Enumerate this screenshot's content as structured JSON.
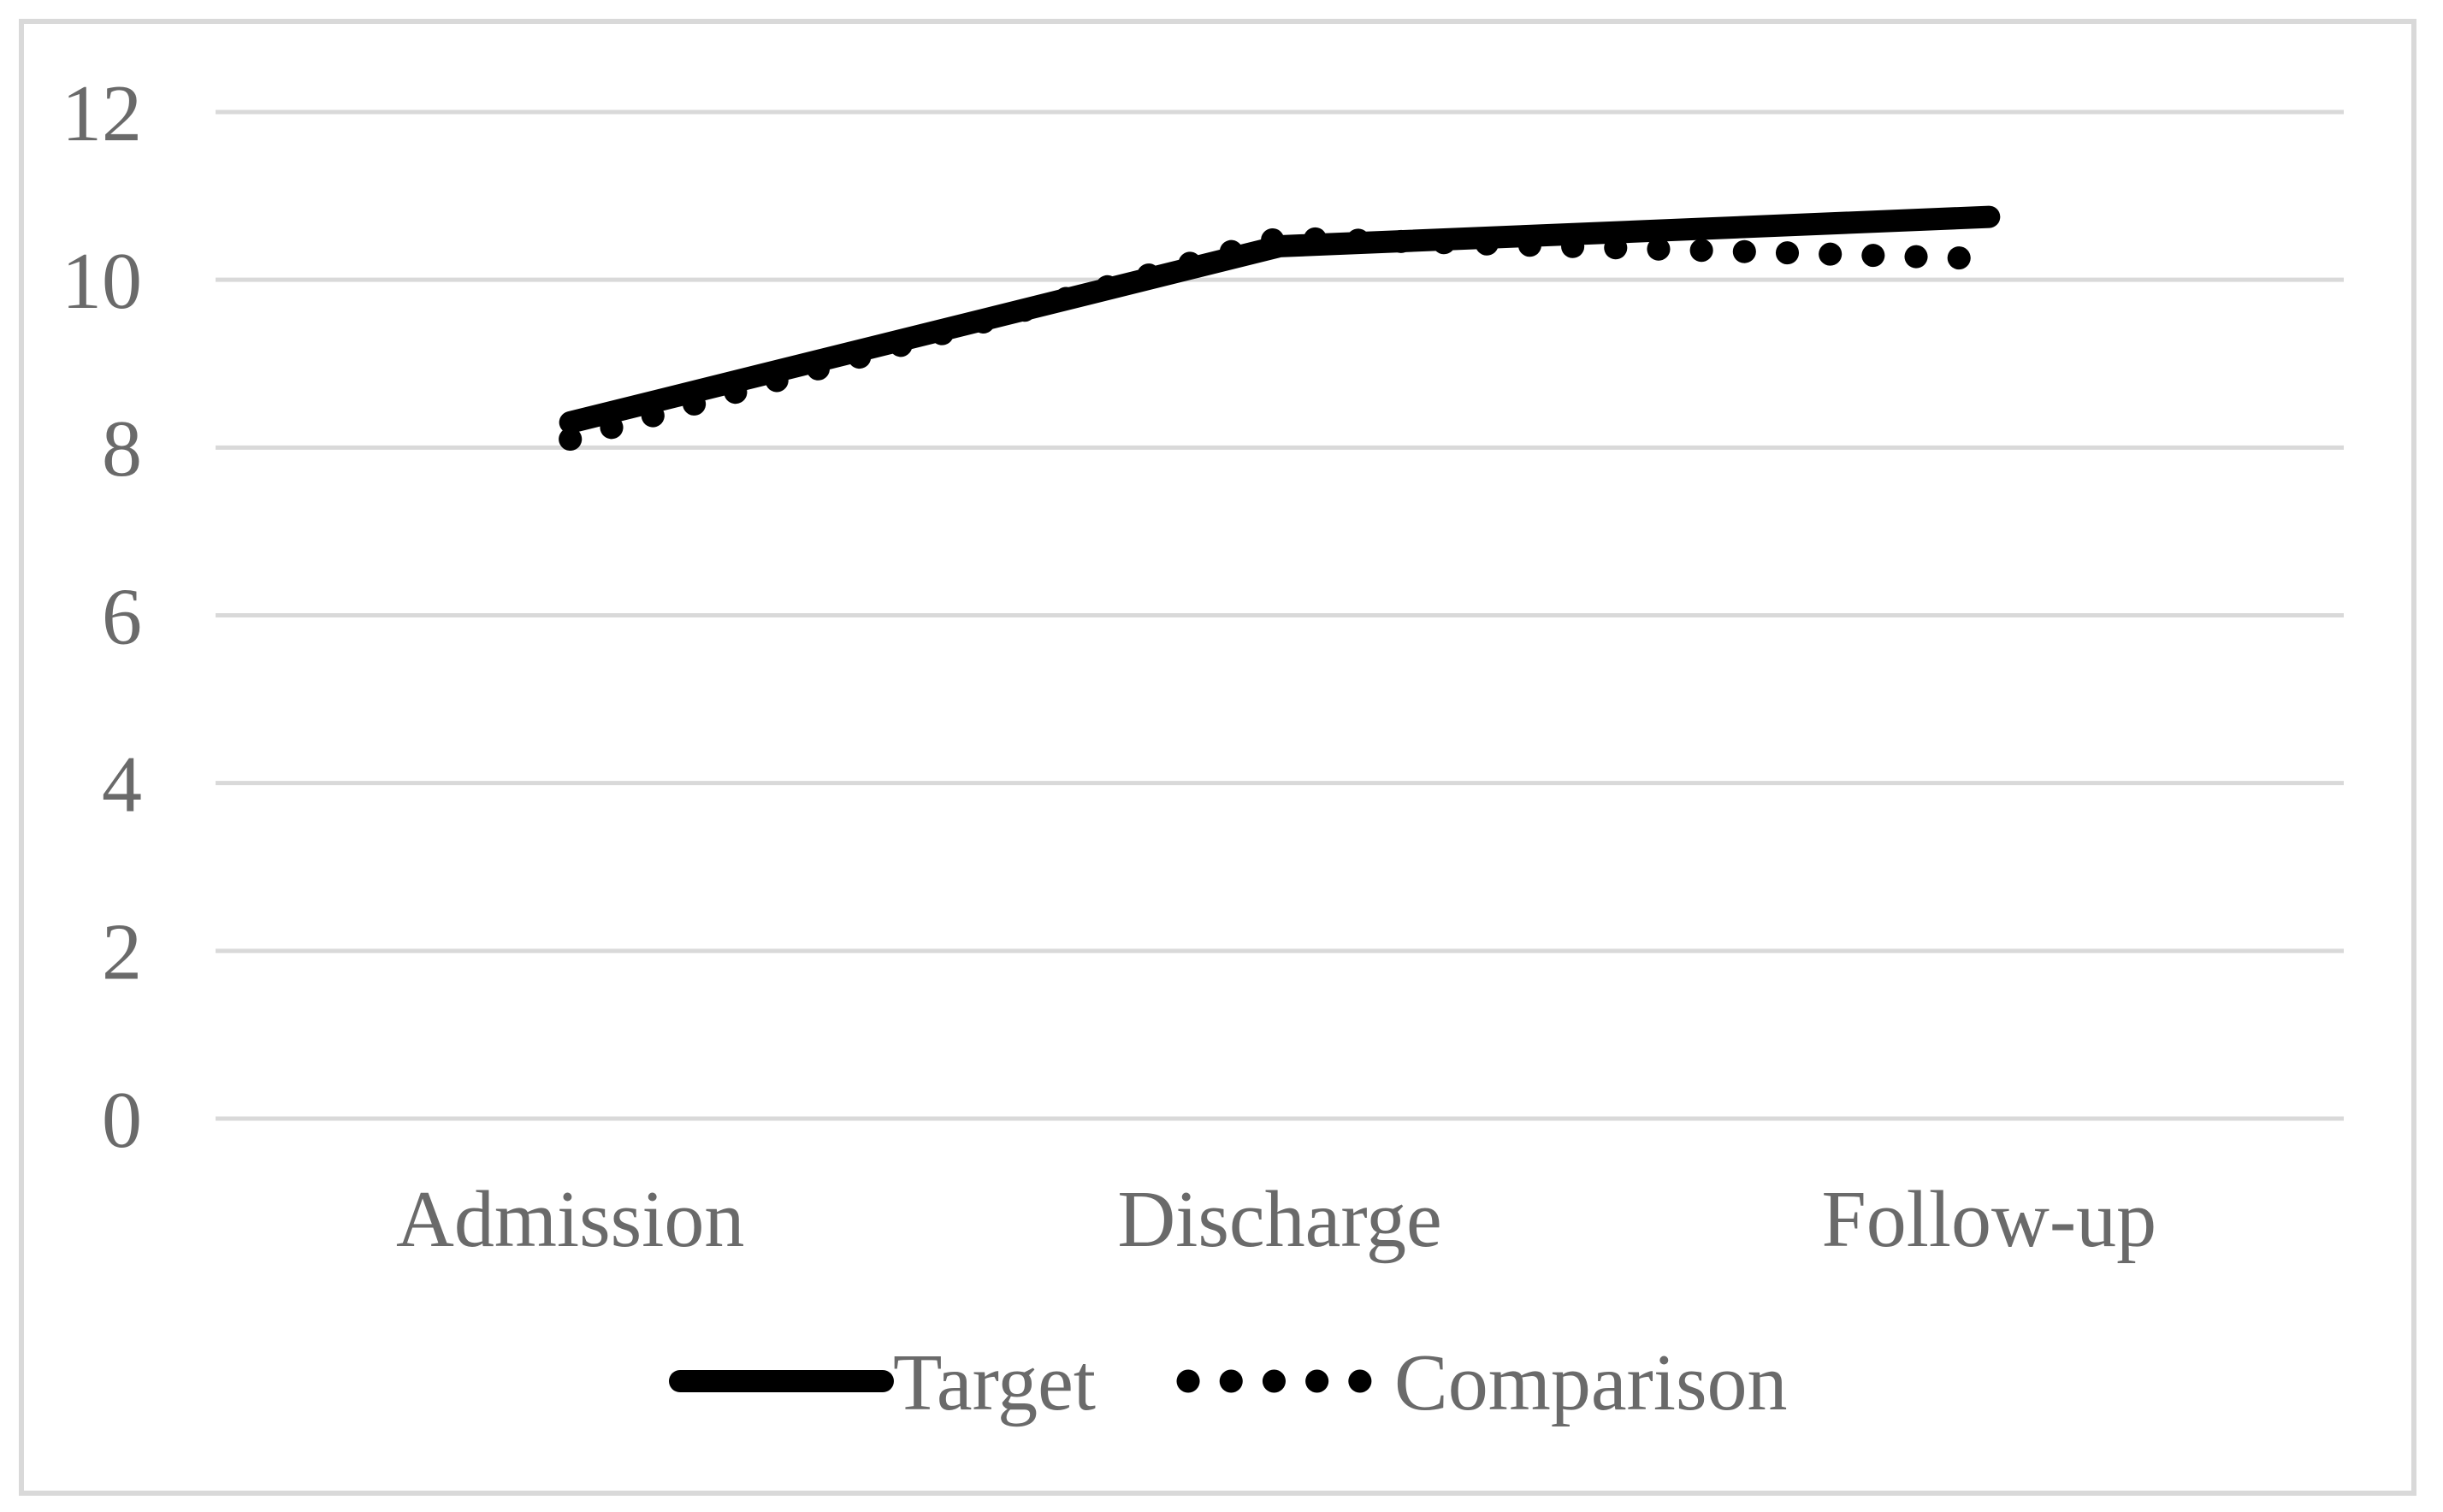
{
  "figure": {
    "background_color": "#ffffff",
    "border_color": "#d9d9d9",
    "gridline_color": "#d9d9d9",
    "label_color": "#6a6a6a",
    "series_color": "#000000"
  },
  "chart_data": {
    "type": "line",
    "title": "",
    "xlabel": "",
    "ylabel": "",
    "categories": [
      "Admission",
      "Discharge",
      "Follow-up"
    ],
    "series": [
      {
        "name": "Target",
        "line_style": "solid",
        "values": [
          8.3,
          10.4,
          10.75
        ]
      },
      {
        "name": "Comparison",
        "line_style": "dotted",
        "values": [
          8.1,
          10.5,
          10.25
        ]
      }
    ],
    "ylim": [
      0,
      12
    ],
    "yticks": [
      0,
      2,
      4,
      6,
      8,
      10,
      12
    ],
    "grid": "horizontal-only",
    "legend_position": "bottom-center",
    "legend_labels": [
      "Target",
      "Comparison"
    ]
  }
}
